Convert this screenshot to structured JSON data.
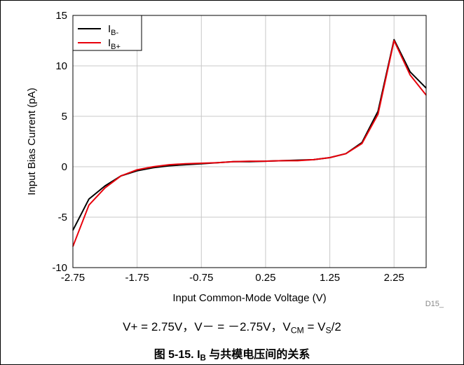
{
  "chart_data": {
    "type": "line",
    "xlabel": "Input Common-Mode Voltage (V)",
    "ylabel": "Input Bias Current (pA)",
    "xlim": [
      -2.75,
      2.75
    ],
    "ylim": [
      -10,
      15
    ],
    "x_ticks": [
      "-2.75",
      "-1.75",
      "-0.75",
      "0.25",
      "1.25",
      "2.25"
    ],
    "x_tick_values": [
      -2.75,
      -1.75,
      -0.75,
      0.25,
      1.25,
      2.25
    ],
    "y_ticks": [
      "15",
      "10",
      "5",
      "0",
      "-5",
      "-10"
    ],
    "y_tick_values": [
      15,
      10,
      5,
      0,
      -5,
      -10
    ],
    "grid": true,
    "legend_position": "top-left",
    "series": [
      {
        "name": "IB-",
        "label_main": "I",
        "label_sub": "B-",
        "color": "#000000",
        "x": [
          -2.75,
          -2.5,
          -2.25,
          -2.0,
          -1.75,
          -1.5,
          -1.25,
          -1.0,
          -0.75,
          -0.5,
          -0.25,
          0.0,
          0.25,
          0.5,
          0.75,
          1.0,
          1.25,
          1.5,
          1.75,
          2.0,
          2.25,
          2.5,
          2.75
        ],
        "y": [
          -6.3,
          -3.2,
          -1.9,
          -0.9,
          -0.4,
          -0.1,
          0.1,
          0.2,
          0.3,
          0.4,
          0.5,
          0.5,
          0.55,
          0.6,
          0.65,
          0.7,
          0.9,
          1.3,
          2.4,
          5.5,
          12.6,
          9.4,
          7.8
        ]
      },
      {
        "name": "IB+",
        "label_main": "I",
        "label_sub": "B+",
        "color": "#e8000b",
        "x": [
          -2.75,
          -2.5,
          -2.25,
          -2.0,
          -1.75,
          -1.5,
          -1.25,
          -1.0,
          -0.75,
          -0.5,
          -0.25,
          0.0,
          0.25,
          0.5,
          0.75,
          1.0,
          1.25,
          1.5,
          1.75,
          2.0,
          2.25,
          2.5,
          2.75
        ],
        "y": [
          -7.9,
          -3.8,
          -2.1,
          -0.9,
          -0.3,
          0.0,
          0.2,
          0.3,
          0.35,
          0.4,
          0.5,
          0.55,
          0.55,
          0.6,
          0.6,
          0.7,
          0.9,
          1.3,
          2.3,
          5.2,
          12.5,
          9.1,
          7.1
        ]
      }
    ],
    "annotation": "D15_"
  },
  "footnote": "V+ = 2.75V，V－ = －2.75V，VCM = VS/2",
  "caption": "图 5-15. IB 与共模电压间的关系"
}
